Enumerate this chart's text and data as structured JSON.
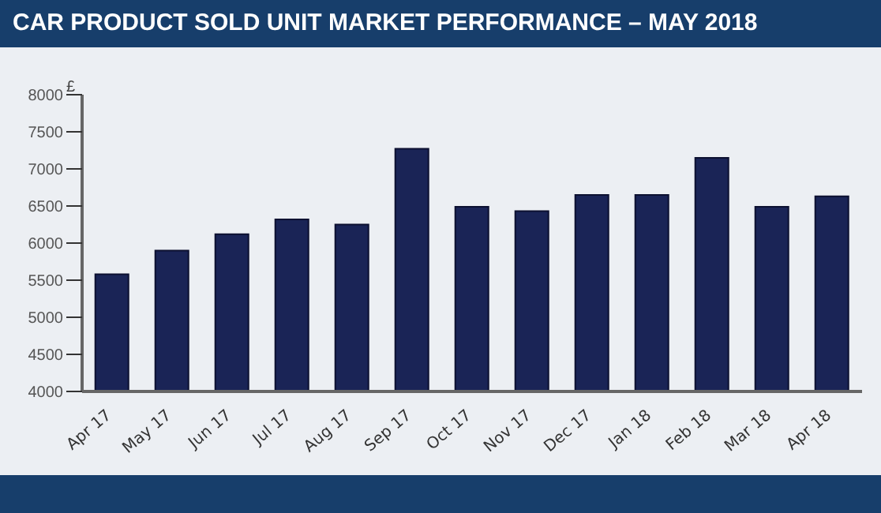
{
  "chart_data": {
    "type": "bar",
    "title": "CAR PRODUCT SOLD UNIT MARKET PERFORMANCE – MAY 2018",
    "ylabel": "£",
    "categories": [
      "Apr 17",
      "May 17",
      "Jun 17",
      "Jul 17",
      "Aug 17",
      "Sep 17",
      "Oct 17",
      "Nov 17",
      "Dec 17",
      "Jan 18",
      "Feb 18",
      "Mar 18",
      "Apr 18"
    ],
    "values": [
      5580,
      5900,
      6120,
      6320,
      6250,
      7270,
      6490,
      6430,
      6650,
      6650,
      7150,
      6490,
      6630
    ],
    "color": "#1a2456",
    "ylim": [
      4000,
      8000
    ],
    "yticks": [
      4000,
      4500,
      5000,
      5500,
      6000,
      6500,
      7000,
      7500,
      8000
    ],
    "grid": false
  }
}
